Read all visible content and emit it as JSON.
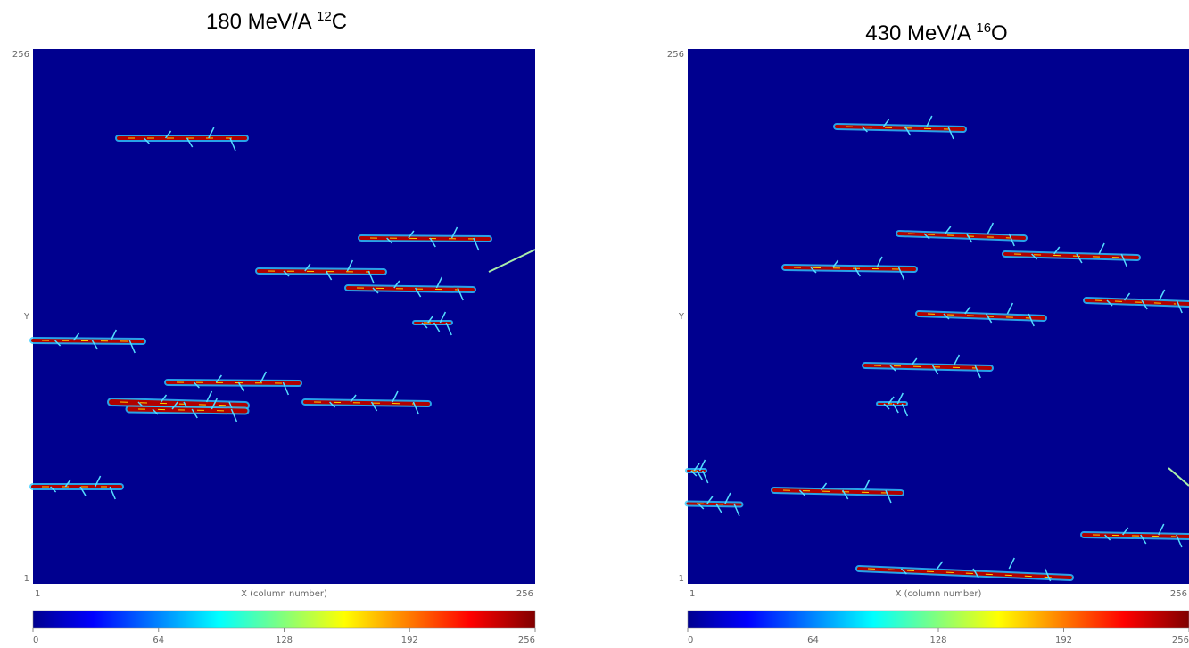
{
  "panels": [
    {
      "title": {
        "prefix": "180 MeV/A ",
        "mass": "12",
        "element": "C"
      },
      "y_ticks": [
        "256",
        "Y",
        "1"
      ],
      "x_ticks": [
        "1",
        "X (column number)",
        "256"
      ]
    },
    {
      "title": {
        "prefix": "430 MeV/A ",
        "mass": "16",
        "element": "O"
      },
      "y_ticks": [
        "256",
        "Y",
        "1"
      ],
      "x_ticks": [
        "1",
        "X (column number)",
        "256"
      ]
    }
  ],
  "colorbar": {
    "range": [
      0,
      256
    ],
    "ticks": [
      0,
      64,
      128,
      192,
      256
    ]
  }
}
